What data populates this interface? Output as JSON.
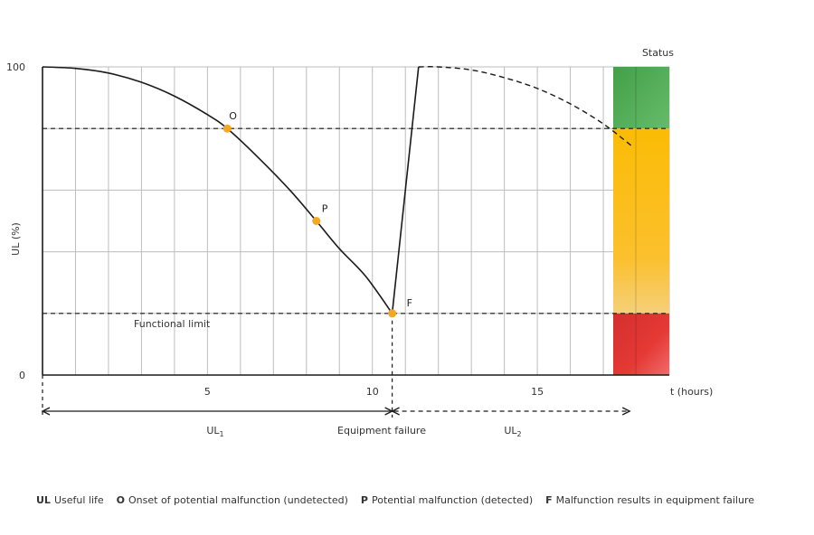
{
  "chart_data": {
    "type": "line",
    "xlabel": "t (hours)",
    "ylabel": "UL (%)",
    "xlim": [
      0,
      19
    ],
    "ylim": [
      0,
      100
    ],
    "x_ticks": [
      5,
      10,
      15
    ],
    "y_ticks": [
      0,
      100
    ],
    "grid": true,
    "series": [
      {
        "style": "solid",
        "x": [
          0,
          1,
          2,
          3,
          4,
          5,
          5.6,
          6.5,
          7.5,
          8.3,
          9,
          9.8,
          10.6,
          11.4
        ],
        "y": [
          100,
          99.5,
          98,
          95,
          90.5,
          84.5,
          80,
          71,
          60,
          50,
          41,
          32,
          20,
          100
        ]
      },
      {
        "style": "dashed",
        "x": [
          11.4,
          12,
          13,
          14,
          15,
          16,
          17,
          17.9
        ],
        "y": [
          100,
          100,
          99,
          96.5,
          93,
          88,
          81.5,
          74
        ]
      }
    ],
    "reference_lines": [
      {
        "axis": "y",
        "value": 80
      },
      {
        "axis": "y",
        "value": 20,
        "label": "Functional limit"
      },
      {
        "axis": "x",
        "value": 10.6
      }
    ],
    "points": [
      {
        "label": "O",
        "x": 5.6,
        "y": 80
      },
      {
        "label": "P",
        "x": 8.3,
        "y": 50
      },
      {
        "label": "F",
        "x": 10.6,
        "y": 20
      }
    ],
    "status_bar": {
      "title": "Status",
      "bands": [
        {
          "from": 80,
          "to": 100,
          "color": "#4CAF50"
        },
        {
          "from": 20,
          "to": 80,
          "color": "#FBC02D"
        },
        {
          "from": 0,
          "to": 20,
          "color": "#D32F2F"
        }
      ]
    },
    "spans": [
      {
        "label": "UL",
        "subscript": "1",
        "from": 0,
        "to": 10.6,
        "style": "solid"
      },
      {
        "label": "UL",
        "subscript": "2",
        "from": 10.6,
        "to": 17.8,
        "style": "dashed"
      }
    ],
    "annotations": {
      "equipment_failure": "Equipment failure"
    },
    "colors": {
      "point": "#F5A623",
      "line": "#1a1a1a",
      "grid": "#bdbdbd"
    },
    "legend_items": [
      {
        "key": "UL",
        "text": "Useful life"
      },
      {
        "key": "O",
        "text": "Onset of potential malfunction (undetected)"
      },
      {
        "key": "P",
        "text": "Potential malfunction (detected)"
      },
      {
        "key": "F",
        "text": "Malfunction results in equipment failure"
      }
    ]
  }
}
